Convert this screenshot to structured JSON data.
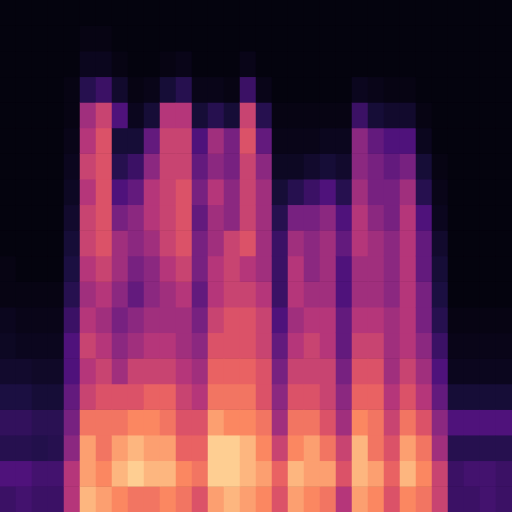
{
  "chart_data": {
    "type": "heatmap",
    "tick_labels": false,
    "grid": false,
    "color_range": [
      0,
      100
    ],
    "cells": [
      [
        20,
        25,
        15,
        18,
        12,
        8,
        6,
        5,
        3,
        3,
        2,
        2,
        2,
        2,
        2,
        2,
        2,
        2,
        2,
        2
      ],
      [
        22,
        25,
        15,
        18,
        12,
        8,
        5,
        4,
        3,
        2,
        2,
        2,
        2,
        2,
        2,
        2,
        2,
        2,
        2,
        2
      ],
      [
        20,
        22,
        14,
        16,
        10,
        7,
        5,
        4,
        3,
        2,
        2,
        2,
        2,
        2,
        2,
        2,
        2,
        2,
        2,
        2
      ],
      [
        20,
        22,
        15,
        16,
        10,
        7,
        5,
        4,
        3,
        2,
        2,
        2,
        2,
        2,
        2,
        2,
        2,
        2,
        2,
        2
      ],
      [
        50,
        50,
        40,
        35,
        30,
        25,
        25,
        20,
        15,
        12,
        10,
        8,
        6,
        5,
        4,
        3,
        3,
        2,
        2,
        2
      ],
      [
        85,
        80,
        80,
        70,
        55,
        50,
        55,
        50,
        45,
        50,
        55,
        55,
        50,
        55,
        50,
        45,
        15,
        5,
        3,
        2
      ],
      [
        80,
        75,
        70,
        70,
        60,
        55,
        50,
        45,
        50,
        55,
        60,
        60,
        60,
        60,
        60,
        55,
        20,
        5,
        3,
        2
      ],
      [
        75,
        85,
        80,
        70,
        60,
        45,
        40,
        35,
        40,
        45,
        45,
        35,
        25,
        15,
        10,
        25,
        8,
        3,
        2,
        2
      ],
      [
        70,
        90,
        85,
        75,
        60,
        55,
        45,
        40,
        30,
        35,
        40,
        40,
        30,
        20,
        10,
        5,
        3,
        2,
        2,
        2
      ],
      [
        70,
        85,
        80,
        75,
        65,
        55,
        50,
        45,
        40,
        40,
        45,
        50,
        50,
        40,
        30,
        10,
        4,
        2,
        2,
        2
      ],
      [
        75,
        85,
        80,
        70,
        65,
        55,
        50,
        45,
        45,
        50,
        55,
        55,
        55,
        55,
        55,
        50,
        10,
        3,
        2,
        2
      ],
      [
        70,
        75,
        65,
        60,
        55,
        50,
        45,
        45,
        50,
        55,
        60,
        60,
        60,
        55,
        55,
        50,
        15,
        4,
        2,
        2
      ],
      [
        60,
        70,
        65,
        60,
        50,
        45,
        40,
        35,
        30,
        35,
        35,
        30,
        35,
        30,
        25,
        10,
        4,
        2,
        2,
        2
      ],
      [
        80,
        90,
        90,
        80,
        70,
        65,
        60,
        55,
        50,
        50,
        45,
        45,
        50,
        40,
        45,
        15,
        4,
        2,
        2,
        2
      ],
      [
        85,
        90,
        90,
        75,
        70,
        65,
        60,
        60,
        55,
        55,
        55,
        40,
        40,
        35,
        35,
        10,
        3,
        2,
        2,
        2
      ],
      [
        80,
        85,
        85,
        75,
        70,
        65,
        60,
        60,
        55,
        50,
        60,
        55,
        55,
        55,
        60,
        55,
        20,
        4,
        2,
        2
      ],
      [
        75,
        80,
        75,
        70,
        60,
        60,
        55,
        55,
        50,
        45,
        45,
        45,
        45,
        40,
        30,
        15,
        4,
        2,
        2,
        2
      ],
      [
        60,
        65,
        55,
        45,
        40,
        35,
        30,
        25,
        20,
        20,
        20,
        15,
        10,
        6,
        4,
        3,
        2,
        2,
        2,
        2
      ],
      [
        80,
        85,
        75,
        70,
        60,
        55,
        50,
        45,
        50,
        50,
        45,
        35,
        15,
        6,
        4,
        3,
        2,
        2,
        2,
        2
      ],
      [
        75,
        80,
        80,
        70,
        60,
        55,
        55,
        50,
        45,
        40,
        40,
        35,
        20,
        8,
        4,
        3,
        2,
        2,
        2,
        2
      ],
      [
        70,
        80,
        70,
        60,
        55,
        55,
        50,
        50,
        45,
        45,
        45,
        40,
        25,
        10,
        5,
        3,
        2,
        2,
        2,
        2
      ],
      [
        50,
        60,
        55,
        45,
        40,
        35,
        30,
        30,
        25,
        25,
        30,
        25,
        15,
        8,
        5,
        3,
        2,
        2,
        2,
        2
      ],
      [
        80,
        85,
        85,
        75,
        65,
        60,
        55,
        50,
        45,
        45,
        50,
        50,
        45,
        40,
        40,
        20,
        5,
        2,
        2,
        2
      ],
      [
        75,
        80,
        70,
        70,
        65,
        60,
        55,
        50,
        45,
        45,
        45,
        40,
        35,
        35,
        30,
        10,
        4,
        2,
        2,
        2
      ],
      [
        60,
        65,
        60,
        55,
        50,
        45,
        45,
        45,
        40,
        40,
        40,
        35,
        35,
        30,
        25,
        8,
        3,
        2,
        2,
        2
      ],
      [
        75,
        85,
        80,
        70,
        60,
        55,
        50,
        50,
        50,
        50,
        50,
        50,
        45,
        35,
        25,
        8,
        3,
        2,
        2,
        2
      ],
      [
        70,
        75,
        70,
        60,
        50,
        45,
        40,
        35,
        35,
        30,
        30,
        25,
        15,
        10,
        5,
        3,
        2,
        2,
        2,
        2
      ],
      [
        55,
        55,
        45,
        40,
        30,
        25,
        20,
        15,
        12,
        10,
        8,
        5,
        4,
        3,
        2,
        2,
        2,
        2,
        2,
        2
      ],
      [
        20,
        20,
        15,
        25,
        10,
        5,
        4,
        3,
        2,
        2,
        2,
        2,
        2,
        2,
        2,
        2,
        2,
        2,
        2,
        2
      ],
      [
        20,
        22,
        15,
        25,
        10,
        5,
        4,
        3,
        2,
        2,
        2,
        2,
        2,
        2,
        2,
        2,
        2,
        2,
        2,
        2
      ],
      [
        22,
        22,
        15,
        25,
        10,
        5,
        4,
        3,
        2,
        2,
        2,
        2,
        2,
        2,
        2,
        2,
        2,
        2,
        2,
        2
      ],
      [
        20,
        20,
        15,
        25,
        10,
        5,
        4,
        3,
        2,
        2,
        2,
        2,
        2,
        2,
        2,
        2,
        2,
        2,
        2,
        2
      ]
    ]
  }
}
